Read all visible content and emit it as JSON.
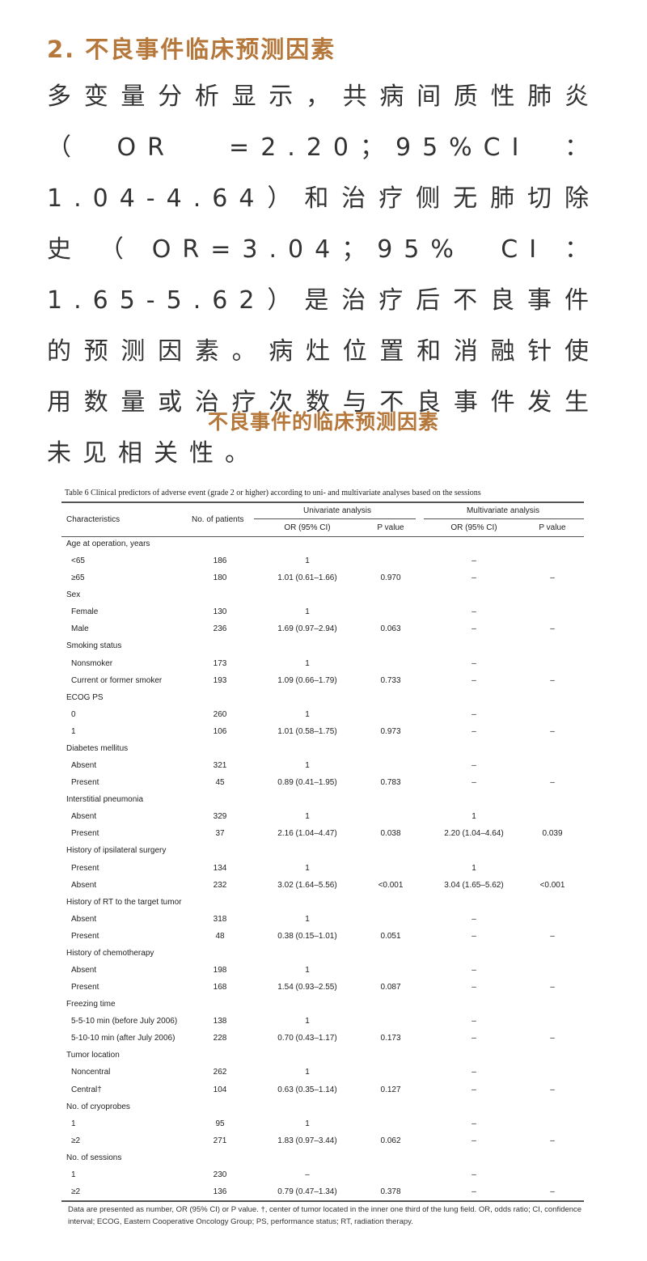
{
  "heading": "2. 不良事件临床预测因素",
  "paragraph": "多变量分析显示，共病间质性肺炎（OR =2.20；95%CI：1.04-4.64）和治疗侧无肺切除史（OR=3.04；95% CI：1.65-5.62）是治疗后不良事件的预测因素。病灶位置和消融针使用数量或治疗次数与不良事件发生未见相关性。",
  "subtitle": "不良事件的临床预测因素",
  "table": {
    "caption": "Table 6 Clinical predictors of adverse event (grade 2 or higher) according to uni- and multivariate analyses based on the sessions",
    "headers": {
      "characteristics": "Characteristics",
      "patients": "No. of patients",
      "univariate": "Univariate analysis",
      "multivariate": "Multivariate analysis",
      "or": "OR (95% CI)",
      "p": "P value"
    },
    "rows": [
      [
        "Age at operation, years",
        "",
        "",
        "",
        "",
        ""
      ],
      [
        "<65",
        "186",
        "1",
        "",
        "–",
        ""
      ],
      [
        "≥65",
        "180",
        "1.01 (0.61–1.66)",
        "0.970",
        "–",
        "–"
      ],
      [
        "Sex",
        "",
        "",
        "",
        "",
        ""
      ],
      [
        "Female",
        "130",
        "1",
        "",
        "–",
        ""
      ],
      [
        "Male",
        "236",
        "1.69 (0.97–2.94)",
        "0.063",
        "–",
        "–"
      ],
      [
        "Smoking status",
        "",
        "",
        "",
        "",
        ""
      ],
      [
        "Nonsmoker",
        "173",
        "1",
        "",
        "–",
        ""
      ],
      [
        "Current or former smoker",
        "193",
        "1.09 (0.66–1.79)",
        "0.733",
        "–",
        "–"
      ],
      [
        "ECOG PS",
        "",
        "",
        "",
        "",
        ""
      ],
      [
        "0",
        "260",
        "1",
        "",
        "–",
        ""
      ],
      [
        "1",
        "106",
        "1.01 (0.58–1.75)",
        "0.973",
        "–",
        "–"
      ],
      [
        "Diabetes mellitus",
        "",
        "",
        "",
        "",
        ""
      ],
      [
        "Absent",
        "321",
        "1",
        "",
        "–",
        ""
      ],
      [
        "Present",
        "45",
        "0.89 (0.41–1.95)",
        "0.783",
        "–",
        "–"
      ],
      [
        "Interstitial pneumonia",
        "",
        "",
        "",
        "",
        ""
      ],
      [
        "Absent",
        "329",
        "1",
        "",
        "1",
        ""
      ],
      [
        "Present",
        "37",
        "2.16 (1.04–4.47)",
        "0.038",
        "2.20 (1.04–4.64)",
        "0.039"
      ],
      [
        "History of ipsilateral surgery",
        "",
        "",
        "",
        "",
        ""
      ],
      [
        "Present",
        "134",
        "1",
        "",
        "1",
        ""
      ],
      [
        "Absent",
        "232",
        "3.02 (1.64–5.56)",
        "<0.001",
        "3.04 (1.65–5.62)",
        "<0.001"
      ],
      [
        "History of RT to the target tumor",
        "",
        "",
        "",
        "",
        ""
      ],
      [
        "Absent",
        "318",
        "1",
        "",
        "–",
        ""
      ],
      [
        "Present",
        "48",
        "0.38 (0.15–1.01)",
        "0.051",
        "–",
        "–"
      ],
      [
        "History of chemotherapy",
        "",
        "",
        "",
        "",
        ""
      ],
      [
        "Absent",
        "198",
        "1",
        "",
        "–",
        ""
      ],
      [
        "Present",
        "168",
        "1.54 (0.93–2.55)",
        "0.087",
        "–",
        "–"
      ],
      [
        "Freezing time",
        "",
        "",
        "",
        "",
        ""
      ],
      [
        "5-5-10 min (before July 2006)",
        "138",
        "1",
        "",
        "–",
        ""
      ],
      [
        "5-10-10 min (after July 2006)",
        "228",
        "0.70 (0.43–1.17)",
        "0.173",
        "–",
        "–"
      ],
      [
        "Tumor location",
        "",
        "",
        "",
        "",
        ""
      ],
      [
        "Noncentral",
        "262",
        "1",
        "",
        "–",
        ""
      ],
      [
        "Central†",
        "104",
        "0.63 (0.35–1.14)",
        "0.127",
        "–",
        "–"
      ],
      [
        "No. of cryoprobes",
        "",
        "",
        "",
        "",
        ""
      ],
      [
        "1",
        "95",
        "1",
        "",
        "–",
        ""
      ],
      [
        "≥2",
        "271",
        "1.83 (0.97–3.44)",
        "0.062",
        "–",
        "–"
      ],
      [
        "No. of sessions",
        "",
        "",
        "",
        "",
        ""
      ],
      [
        "1",
        "230",
        "–",
        "",
        "–",
        ""
      ],
      [
        "≥2",
        "136",
        "0.79 (0.47–1.34)",
        "0.378",
        "–",
        "–"
      ]
    ],
    "footnote": "Data are presented as number, OR (95% CI) or P value. †, center of tumor located in the inner one third of the lung field. OR, odds ratio; CI, confidence interval; ECOG, Eastern Cooperative Oncology Group; PS, performance status; RT, radiation therapy."
  }
}
